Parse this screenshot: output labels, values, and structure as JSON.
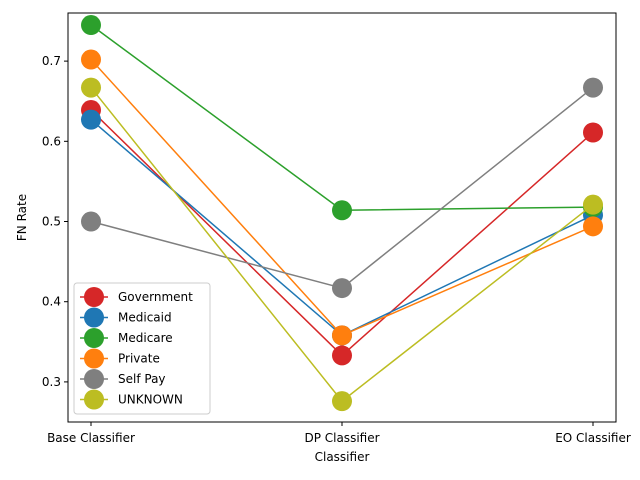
{
  "chart_data": {
    "type": "line",
    "title": "",
    "xlabel": "Classifier",
    "ylabel": "FN Rate",
    "categories": [
      "Base Classifier",
      "DP Classifier",
      "EO Classifier"
    ],
    "ylim": [
      0.25,
      0.76
    ],
    "yticks": [
      0.3,
      0.4,
      0.5,
      0.6,
      0.7
    ],
    "ytick_labels": [
      "0.3",
      "0.4",
      "0.5",
      "0.6",
      "0.7"
    ],
    "grid": false,
    "legend_position": "lower-left",
    "series": [
      {
        "name": "Government",
        "color": "#d62728",
        "values": [
          0.639,
          0.333,
          0.611
        ]
      },
      {
        "name": "Medicaid",
        "color": "#1f77b4",
        "values": [
          0.627,
          0.358,
          0.508
        ]
      },
      {
        "name": "Medicare",
        "color": "#2ca02c",
        "values": [
          0.745,
          0.514,
          0.518
        ]
      },
      {
        "name": "Private",
        "color": "#ff7f0e",
        "values": [
          0.702,
          0.358,
          0.494
        ]
      },
      {
        "name": "Self Pay",
        "color": "#7f7f7f",
        "values": [
          0.5,
          0.417,
          0.667
        ]
      },
      {
        "name": "UNKNOWN",
        "color": "#bcbd22",
        "values": [
          0.667,
          0.276,
          0.521
        ]
      }
    ]
  }
}
